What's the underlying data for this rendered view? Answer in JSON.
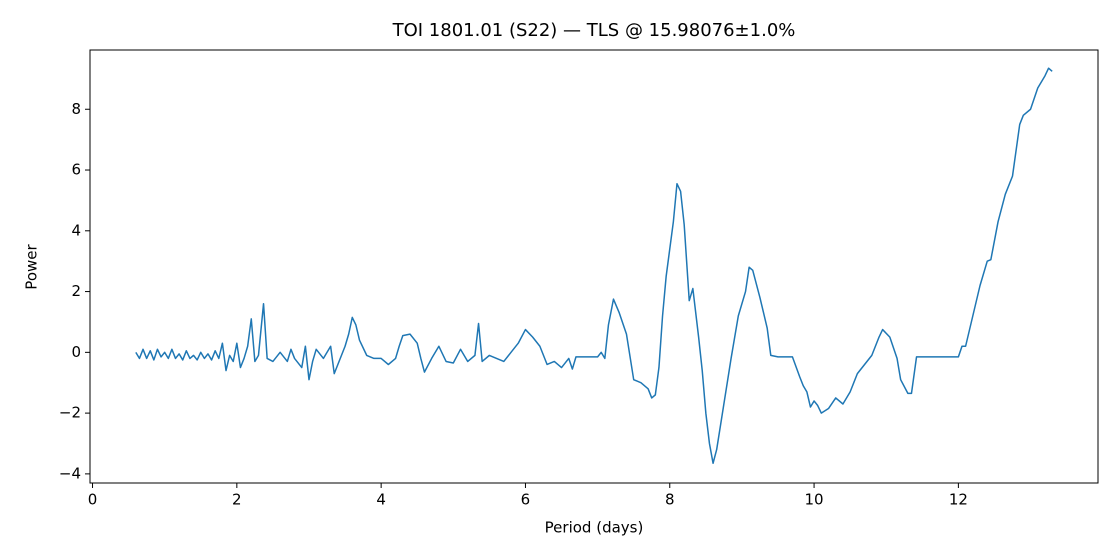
{
  "chart_data": {
    "type": "line",
    "title": "TOI 1801.01 (S22) — TLS @ 15.98076±1.0%",
    "xlabel": "Period (days)",
    "ylabel": "Power",
    "xlim": [
      -0.035,
      13.935
    ],
    "ylim": [
      -4.3,
      9.95
    ],
    "xticks": [
      0,
      2,
      4,
      6,
      8,
      10,
      12
    ],
    "yticks": [
      {
        "value": -4,
        "label": "−4"
      },
      {
        "value": -2,
        "label": "−2"
      },
      0,
      2,
      4,
      6,
      8
    ],
    "series": [
      {
        "color": "#1f77b4",
        "x": [
          0.6,
          0.65,
          0.7,
          0.75,
          0.8,
          0.85,
          0.9,
          0.95,
          1.0,
          1.05,
          1.1,
          1.15,
          1.2,
          1.25,
          1.3,
          1.35,
          1.4,
          1.45,
          1.5,
          1.55,
          1.6,
          1.65,
          1.7,
          1.75,
          1.8,
          1.85,
          1.9,
          1.95,
          2.0,
          2.05,
          2.1,
          2.15,
          2.2,
          2.25,
          2.3,
          2.37,
          2.42,
          2.5,
          2.6,
          2.7,
          2.75,
          2.8,
          2.9,
          2.95,
          3.0,
          3.05,
          3.1,
          3.2,
          3.3,
          3.35,
          3.45,
          3.5,
          3.55,
          3.6,
          3.65,
          3.7,
          3.8,
          3.9,
          4.0,
          4.1,
          4.2,
          4.25,
          4.3,
          4.4,
          4.5,
          4.55,
          4.6,
          4.7,
          4.8,
          4.9,
          5.0,
          5.1,
          5.2,
          5.3,
          5.35,
          5.4,
          5.5,
          5.6,
          5.7,
          5.8,
          5.9,
          6.0,
          6.1,
          6.2,
          6.3,
          6.4,
          6.5,
          6.6,
          6.65,
          6.7,
          7.0,
          7.05,
          7.1,
          7.15,
          7.22,
          7.3,
          7.4,
          7.5,
          7.6,
          7.7,
          7.75,
          7.8,
          7.85,
          7.9,
          7.95,
          8.0,
          8.05,
          8.1,
          8.15,
          8.2,
          8.27,
          8.32,
          8.4,
          8.45,
          8.5,
          8.55,
          8.6,
          8.65,
          8.75,
          8.85,
          8.95,
          9.05,
          9.1,
          9.15,
          9.25,
          9.35,
          9.4,
          9.5,
          9.7,
          9.8,
          9.85,
          9.9,
          9.95,
          10.0,
          10.05,
          10.1,
          10.2,
          10.3,
          10.4,
          10.5,
          10.6,
          10.7,
          10.8,
          10.9,
          10.95,
          11.05,
          11.15,
          11.2,
          11.3,
          11.35,
          11.42,
          12.0,
          12.05,
          12.1,
          12.2,
          12.3,
          12.4,
          12.45,
          12.55,
          12.65,
          12.75,
          12.85,
          12.9,
          13.0,
          13.1,
          13.2,
          13.25,
          13.3
        ],
        "values": [
          0.0,
          -0.2,
          0.1,
          -0.2,
          0.05,
          -0.25,
          0.1,
          -0.15,
          0.0,
          -0.2,
          0.1,
          -0.2,
          -0.05,
          -0.25,
          0.05,
          -0.2,
          -0.1,
          -0.25,
          0.0,
          -0.2,
          -0.05,
          -0.25,
          0.05,
          -0.2,
          0.3,
          -0.6,
          -0.1,
          -0.3,
          0.3,
          -0.5,
          -0.2,
          0.2,
          1.1,
          -0.3,
          -0.1,
          1.6,
          -0.2,
          -0.3,
          0.0,
          -0.3,
          0.1,
          -0.2,
          -0.5,
          0.2,
          -0.9,
          -0.3,
          0.1,
          -0.2,
          0.2,
          -0.7,
          -0.1,
          0.2,
          0.6,
          1.15,
          0.9,
          0.4,
          -0.1,
          -0.2,
          -0.2,
          -0.4,
          -0.2,
          0.2,
          0.55,
          0.6,
          0.3,
          -0.2,
          -0.65,
          -0.2,
          0.2,
          -0.3,
          -0.35,
          0.1,
          -0.3,
          -0.1,
          0.95,
          -0.3,
          -0.1,
          -0.2,
          -0.3,
          0.0,
          0.3,
          0.75,
          0.5,
          0.2,
          -0.4,
          -0.3,
          -0.5,
          -0.2,
          -0.55,
          -0.15,
          -0.15,
          0.0,
          -0.2,
          0.9,
          1.75,
          1.3,
          0.6,
          -0.9,
          -1.0,
          -1.2,
          -1.5,
          -1.4,
          -0.5,
          1.2,
          2.5,
          3.4,
          4.3,
          5.55,
          5.3,
          4.2,
          1.7,
          2.1,
          0.5,
          -0.6,
          -2.0,
          -3.0,
          -3.65,
          -3.2,
          -1.7,
          -0.2,
          1.2,
          2.0,
          2.8,
          2.7,
          1.8,
          0.8,
          -0.1,
          -0.15,
          -0.15,
          -0.8,
          -1.1,
          -1.3,
          -1.8,
          -1.6,
          -1.75,
          -2.0,
          -1.85,
          -1.5,
          -1.7,
          -1.3,
          -0.7,
          -0.4,
          -0.1,
          0.5,
          0.75,
          0.5,
          -0.2,
          -0.9,
          -1.35,
          -1.35,
          -0.15,
          -0.15,
          0.2,
          0.2,
          1.2,
          2.2,
          3.0,
          3.05,
          4.3,
          5.2,
          5.8,
          7.5,
          7.8,
          8.0,
          8.7,
          9.1,
          9.35,
          9.25
        ]
      }
    ]
  }
}
